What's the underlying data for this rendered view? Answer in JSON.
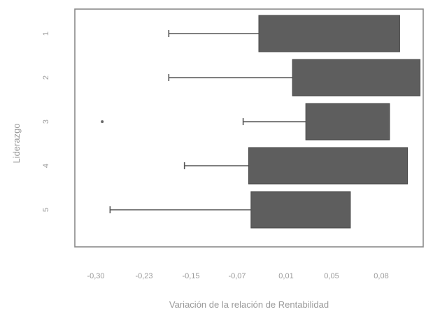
{
  "chart_data": {
    "type": "boxplot",
    "orientation": "horizontal",
    "title": "",
    "xlabel": "Variación de la relación de Rentabilidad",
    "ylabel": "Liderazgo",
    "xlim": [
      -0.36,
      0.085
    ],
    "x_ticks": [
      -0.3,
      -0.23,
      -0.15,
      -0.07,
      0.01,
      0.05,
      0.08
    ],
    "x_tick_labels": [
      "-0,30",
      "-0,23",
      "-0,15",
      "-0,07",
      "0,01",
      "0,05",
      "0,08"
    ],
    "grid": false,
    "legend": "none",
    "categories": [
      "1",
      "2",
      "3",
      "4",
      "5"
    ],
    "boxes": [
      {
        "category": "1",
        "whisker_low": -0.24,
        "q1": -0.125,
        "q3": 0.055,
        "whisker_high": 0.055,
        "outliers": []
      },
      {
        "category": "2",
        "whisker_low": -0.24,
        "q1": -0.082,
        "q3": 0.081,
        "whisker_high": 0.081,
        "outliers": []
      },
      {
        "category": "3",
        "whisker_low": -0.145,
        "q1": -0.065,
        "q3": 0.042,
        "whisker_high": 0.042,
        "outliers": [
          -0.325
        ]
      },
      {
        "category": "4",
        "whisker_low": -0.22,
        "q1": -0.138,
        "q3": 0.065,
        "whisker_high": 0.065,
        "outliers": []
      },
      {
        "category": "5",
        "whisker_low": -0.315,
        "q1": -0.135,
        "q3": -0.008,
        "whisker_high": -0.008,
        "outliers": []
      }
    ],
    "colors": {
      "box": "#5e5e5e",
      "whisker": "#555555",
      "frame": "#8a8a8a",
      "text": "#9a9a9a"
    }
  }
}
